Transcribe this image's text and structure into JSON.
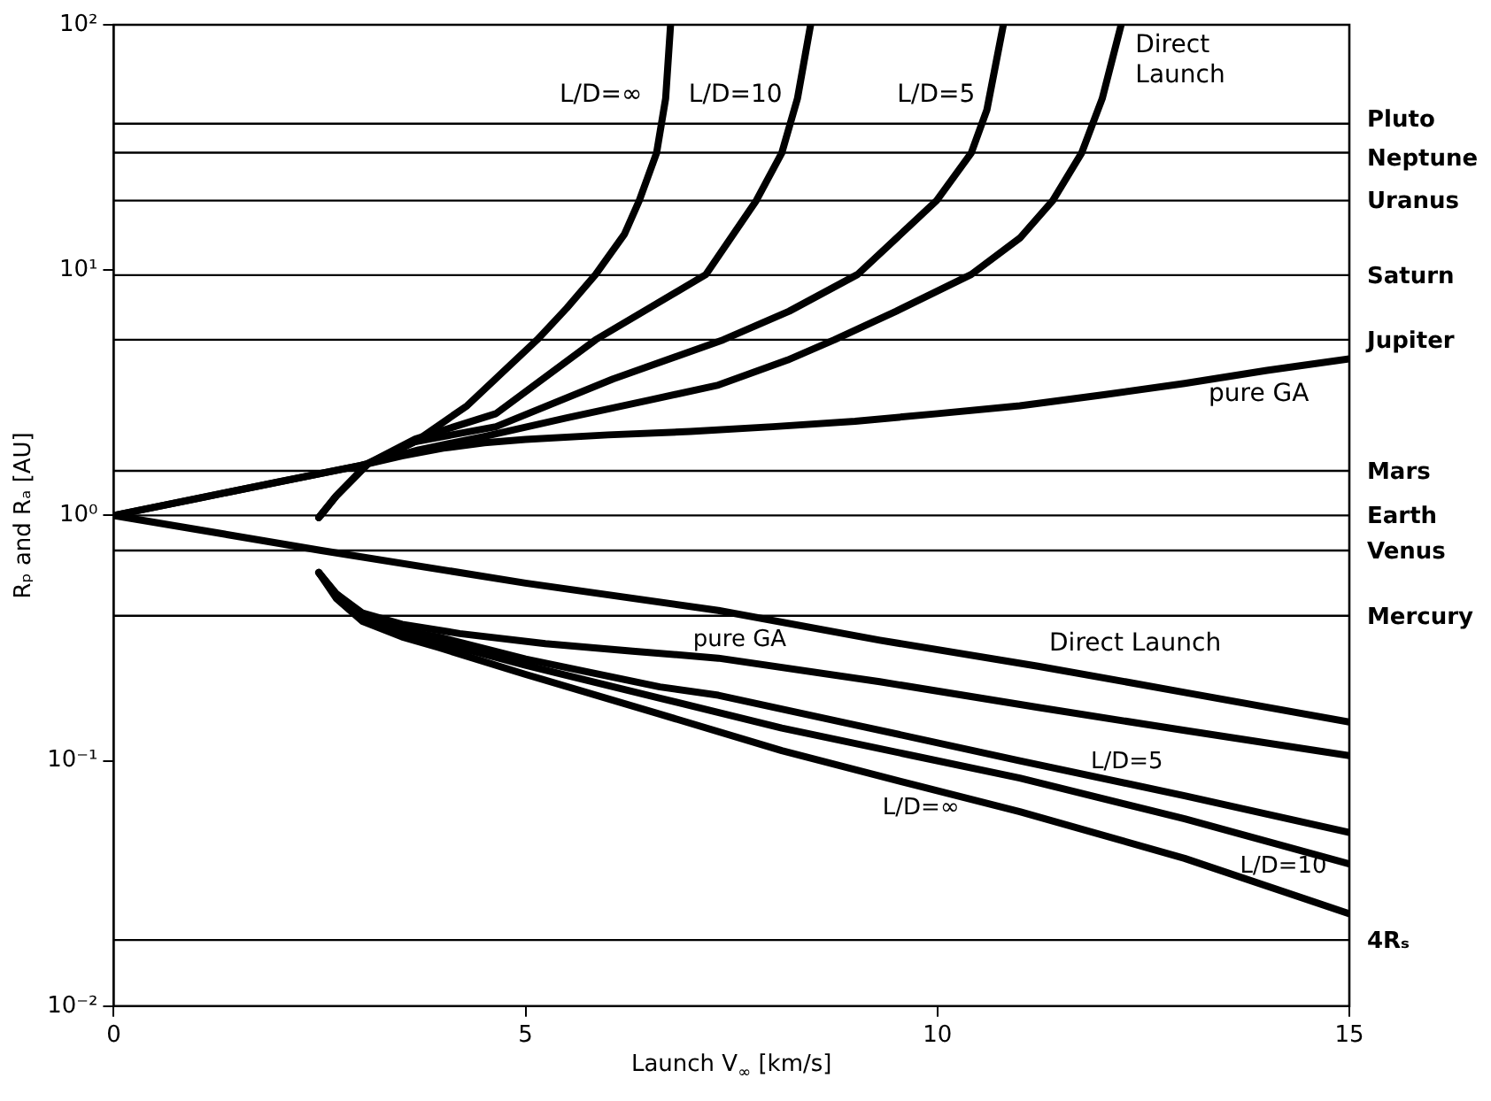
{
  "chart_data": {
    "type": "line",
    "xlabel": "Launch V$_{∞}$ [km/s]",
    "ylabel": "Rₚ and Rₐ [AU]",
    "xlim": [
      0,
      15
    ],
    "xticks": [
      0,
      5,
      10,
      15
    ],
    "ylim": [
      0.01,
      100
    ],
    "yticks": [
      {
        "value": 0.01,
        "label": "10⁻²"
      },
      {
        "value": 0.1,
        "label": "10⁻¹"
      },
      {
        "value": 1,
        "label": "10⁰"
      },
      {
        "value": 10,
        "label": "10¹"
      },
      {
        "value": 100,
        "label": "10²"
      }
    ],
    "log": "y",
    "grid": false,
    "legend": false,
    "marker": "none",
    "line_style": "solid",
    "series": [
      {
        "name": "Direct Launch",
        "color": "#000000",
        "x": [
          0,
          3,
          3.7,
          4.5,
          5.5,
          6.5,
          7.34,
          8.18,
          8.75,
          9.5,
          10.41,
          11,
          11.4,
          11.75,
          12,
          12.23
        ],
        "values": [
          1,
          1.6,
          1.85,
          2.1,
          2.5,
          2.95,
          3.4,
          4.3,
          5.2,
          6.8,
          9.6,
          13.5,
          19.2,
          30,
          50,
          100
        ]
      },
      {
        "name": "L/D=5",
        "color": "#000000",
        "x": [
          2.49,
          2.7,
          3.09,
          3.66,
          4.64,
          6.06,
          7.4,
          8.2,
          9.03,
          9.99,
          10.41,
          10.6,
          10.8
        ],
        "values": [
          0.98,
          1.2,
          1.63,
          2.0,
          2.3,
          3.6,
          5.2,
          6.8,
          9.6,
          19.2,
          30,
          45,
          100
        ]
      },
      {
        "name": "L/D=10",
        "color": "#000000",
        "x": [
          2.49,
          2.7,
          3.09,
          3.66,
          4.64,
          5.85,
          6.5,
          7.19,
          7.8,
          8.11,
          8.3,
          8.46
        ],
        "values": [
          0.98,
          1.2,
          1.63,
          2.05,
          2.6,
          5.2,
          7.0,
          9.6,
          19.2,
          30,
          50,
          100
        ]
      },
      {
        "name": "L/D=∞",
        "color": "#000000",
        "x": [
          2.49,
          2.7,
          3.09,
          3.66,
          4.29,
          5.14,
          5.5,
          5.85,
          6.2,
          6.38,
          6.59,
          6.7,
          6.76
        ],
        "values": [
          0.98,
          1.2,
          1.63,
          2.0,
          2.8,
          5.2,
          7,
          9.6,
          14,
          19.2,
          30,
          50,
          100
        ]
      },
      {
        "name": "pure GA",
        "color": "#000000",
        "x": [
          0,
          1,
          2,
          3,
          3.5,
          4,
          4.5,
          5,
          6,
          7,
          8,
          9,
          10,
          11,
          12,
          13,
          14,
          15
        ],
        "values": [
          1,
          1.17,
          1.37,
          1.6,
          1.75,
          1.88,
          1.98,
          2.04,
          2.13,
          2.2,
          2.3,
          2.42,
          2.6,
          2.8,
          3.1,
          3.45,
          3.9,
          4.35
        ]
      },
      {
        "name": "Direct Launch",
        "color": "#000000",
        "x": [
          0,
          2.52,
          5,
          7.34,
          9.3,
          11.22,
          13,
          15
        ],
        "values": [
          1,
          0.72,
          0.53,
          0.41,
          0.31,
          0.243,
          0.19,
          0.144
        ]
      },
      {
        "name": "pure GA",
        "color": "#000000",
        "x": [
          2.49,
          2.7,
          3.02,
          3.5,
          4.2,
          5.24,
          6.3,
          7.34,
          9.3,
          11.22,
          13,
          15
        ],
        "values": [
          0.585,
          0.48,
          0.4,
          0.36,
          0.33,
          0.3,
          0.28,
          0.262,
          0.21,
          0.165,
          0.133,
          0.105
        ]
      },
      {
        "name": "L/D=5",
        "color": "#000000",
        "x": [
          2.49,
          2.7,
          3.02,
          3.5,
          3.94,
          5,
          6.63,
          7.34,
          9,
          11,
          13,
          15
        ],
        "values": [
          0.585,
          0.48,
          0.39,
          0.34,
          0.32,
          0.26,
          0.2,
          0.185,
          0.14,
          0.1,
          0.072,
          0.051
        ]
      },
      {
        "name": "L/D=10",
        "color": "#000000",
        "x": [
          2.49,
          2.7,
          3.02,
          3.5,
          3.94,
          5,
          6.63,
          8.11,
          9.7,
          11,
          13,
          15
        ],
        "values": [
          0.585,
          0.47,
          0.38,
          0.33,
          0.305,
          0.245,
          0.18,
          0.136,
          0.105,
          0.085,
          0.058,
          0.038
        ]
      },
      {
        "name": "L/D=∞",
        "color": "#000000",
        "x": [
          2.49,
          2.7,
          3.02,
          3.5,
          3.94,
          5,
          6.63,
          8.11,
          9.7,
          11,
          13,
          15
        ],
        "values": [
          0.585,
          0.46,
          0.37,
          0.32,
          0.29,
          0.225,
          0.155,
          0.11,
          0.08,
          0.062,
          0.04,
          0.0238
        ]
      }
    ],
    "ref_lines": [
      {
        "axis": "y",
        "value": 39.5,
        "label": "Pluto",
        "color": "#000000"
      },
      {
        "axis": "y",
        "value": 30.1,
        "label": "Neptune",
        "color": "#000000"
      },
      {
        "axis": "y",
        "value": 19.2,
        "label": "Uranus",
        "color": "#000000"
      },
      {
        "axis": "y",
        "value": 9.54,
        "label": "Saturn",
        "color": "#000000"
      },
      {
        "axis": "y",
        "value": 5.2,
        "label": "Jupiter",
        "color": "#000000"
      },
      {
        "axis": "y",
        "value": 1.52,
        "label": "Mars",
        "color": "#000000"
      },
      {
        "axis": "y",
        "value": 1,
        "label": "Earth",
        "color": "#000000"
      },
      {
        "axis": "y",
        "value": 0.72,
        "label": "Venus",
        "color": "#000000"
      },
      {
        "axis": "y",
        "value": 0.39,
        "label": "Mercury",
        "color": "#000000"
      },
      {
        "axis": "y",
        "value": 0.0186,
        "label": "4Rₛ",
        "color": "#000000"
      }
    ]
  }
}
